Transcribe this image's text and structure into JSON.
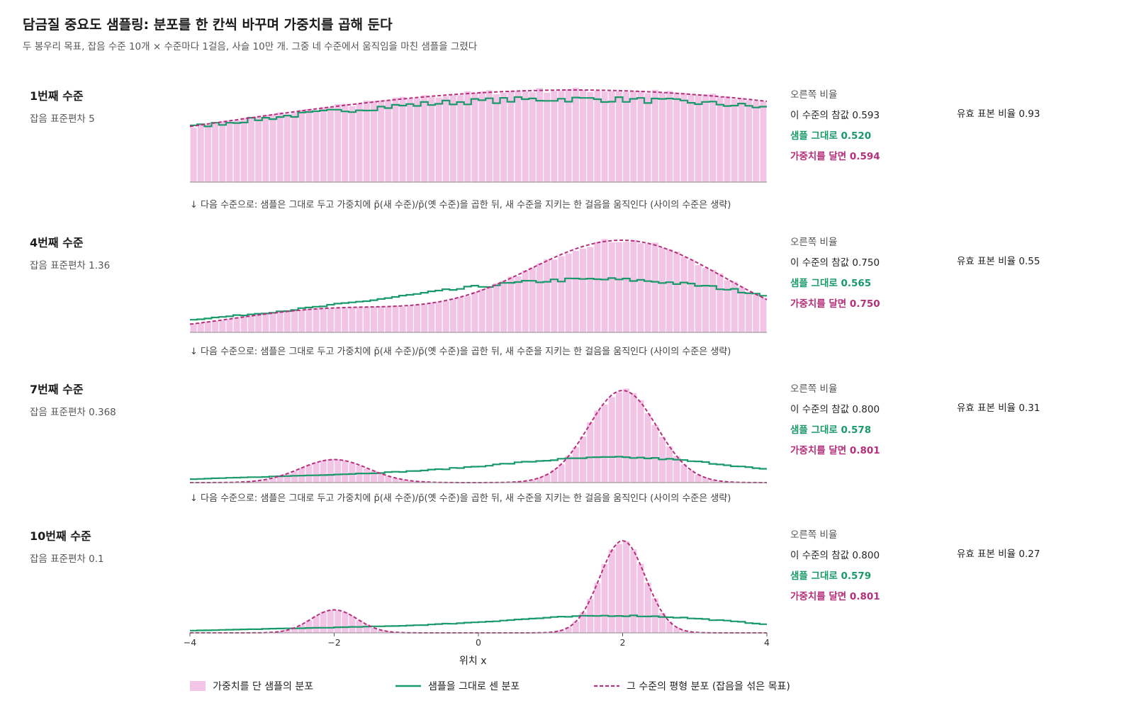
{
  "title": "담금질 중요도 샘플링: 분포를 한 칸씩 바꾸며 가중치를 곱해 둔다",
  "subtitle": "두 봉우리 목표, 잡음 수준 10개 × 수준마다 1걸음, 사슬 10만 개. 그중 네 수준에서 움직임을 마친 샘플을 그렸다",
  "between_note": "↓ 다음 수준으로: 샘플은 그대로 두고 가중치에 p̃(새 수준)/p̃(옛 수준)을 곱한 뒤, 새 수준을 지키는 한 걸음을 움직인다 (사이의 수준은 생략)",
  "xlabel": "위치 x",
  "stats_header": "오른쪽 비율",
  "legend": {
    "bars": "가중치를 단 샘플의 분포",
    "raw": "샘플을 그대로 센 분포",
    "target": "그 수준의 평형 분포 (잡음을 섞은 목표)"
  },
  "colors": {
    "bars": "#f2c4e6",
    "raw": "#1a9a6a",
    "target": "#b5307a",
    "axis": "#555555"
  },
  "panels": [
    {
      "level": "1번째 수준",
      "noise": "잡음 표준편차 5",
      "true_label": "이 수준의 참값 0.593",
      "raw_label": "샘플 그대로 0.520",
      "weighted_label": "가중치를 달면 0.594",
      "ess_label": "유효 표본 비율 0.93"
    },
    {
      "level": "4번째 수준",
      "noise": "잡음 표준편차 1.36",
      "true_label": "이 수준의 참값 0.750",
      "raw_label": "샘플 그대로 0.565",
      "weighted_label": "가중치를 달면 0.750",
      "ess_label": "유효 표본 비율 0.55"
    },
    {
      "level": "7번째 수준",
      "noise": "잡음 표준편차 0.368",
      "true_label": "이 수준의 참값 0.800",
      "raw_label": "샘플 그대로 0.578",
      "weighted_label": "가중치를 달면 0.801",
      "ess_label": "유효 표본 비율 0.31"
    },
    {
      "level": "10번째 수준",
      "noise": "잡음 표준편차 0.1",
      "true_label": "이 수준의 참값 0.800",
      "raw_label": "샘플 그대로 0.579",
      "weighted_label": "가중치를 달면 0.801",
      "ess_label": "유효 표본 비율 0.27"
    }
  ],
  "chart_data": {
    "type": "bar",
    "xlim": [
      -4,
      4
    ],
    "x_ticks": [
      "−4",
      "−2",
      "0",
      "2",
      "4"
    ],
    "x_tick_values": [
      -4,
      -2,
      0,
      2,
      4
    ],
    "bins": 80,
    "panels": [
      {
        "sd": 5
      },
      {
        "sd": 1.36
      },
      {
        "sd": 0.368
      },
      {
        "sd": 0.1
      }
    ]
  }
}
